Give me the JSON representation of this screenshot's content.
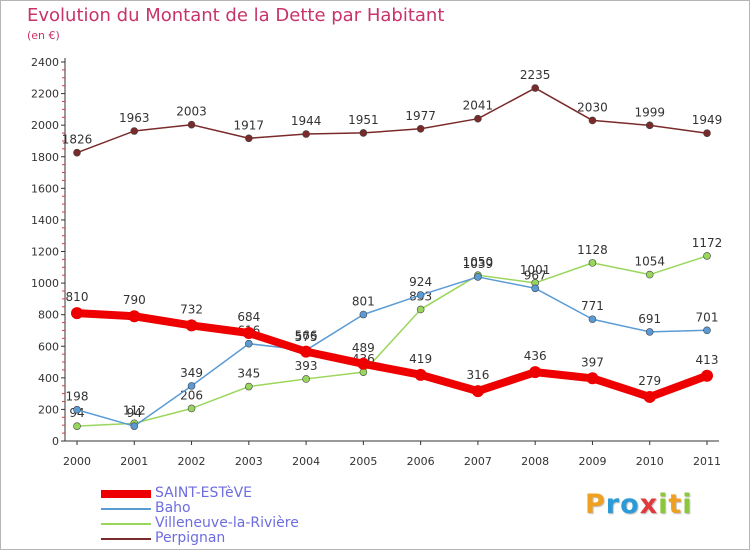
{
  "chart_data": {
    "type": "line",
    "title": "Evolution du Montant de la Dette par Habitant",
    "subtitle": "(en €)",
    "x": [
      "2000",
      "2001",
      "2002",
      "2003",
      "2004",
      "2005",
      "2006",
      "2007",
      "2008",
      "2009",
      "2010",
      "2011"
    ],
    "ylim": [
      0,
      2400
    ],
    "yticks": [
      0,
      200,
      400,
      600,
      800,
      1000,
      1200,
      1400,
      1600,
      1800,
      2000,
      2200,
      2400
    ],
    "grid": false,
    "legend_position": "bottom-left",
    "series": [
      {
        "name": "Perpignan",
        "color": "#7a2a2a",
        "values": [
          1826,
          1963,
          2003,
          1917,
          1944,
          1951,
          1977,
          2041,
          2235,
          2030,
          1999,
          1949
        ]
      },
      {
        "name": "Villeneuve-la-Rivière",
        "color": "#99d65c",
        "values": [
          94,
          112,
          206,
          345,
          393,
          436,
          833,
          1050,
          1001,
          1128,
          1054,
          1172
        ]
      },
      {
        "name": "Baho",
        "color": "#5b9bd5",
        "values": [
          198,
          94,
          349,
          616,
          575,
          801,
          924,
          1039,
          967,
          771,
          691,
          701
        ]
      },
      {
        "name": "SAINT-ESTèVE",
        "color": "#ee0000",
        "values": [
          810,
          790,
          732,
          684,
          566,
          489,
          419,
          316,
          436,
          397,
          279,
          413
        ]
      }
    ]
  },
  "legend": [
    {
      "label": "SAINT-ESTèVE",
      "color": "#ee0000"
    },
    {
      "label": "Baho",
      "color": "#5b9bd5"
    },
    {
      "label": "Villeneuve-la-Rivière",
      "color": "#99d65c"
    },
    {
      "label": "Perpignan",
      "color": "#7a2a2a"
    }
  ],
  "logo": {
    "letters": [
      "P",
      "r",
      "o",
      "x",
      "i",
      "t",
      "i"
    ],
    "colors": [
      "#f0a020",
      "#2b9ad8",
      "#2b9ad8",
      "#e03a3a",
      "#8cc63f",
      "#f0a020",
      "#8cc63f"
    ]
  }
}
